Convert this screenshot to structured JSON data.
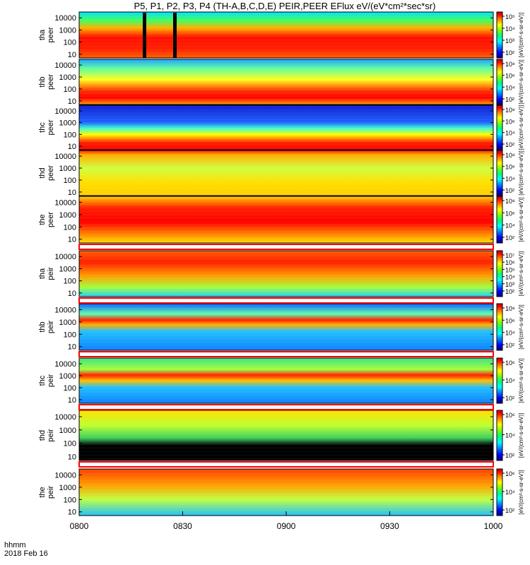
{
  "title": "P5, P1, P2, P3, P4 (TH-A,B,C,D,E) PEIR,PEER EFlux eV/(eV*cm²*sec*sr)",
  "footer": {
    "time_label": "hhmm",
    "date_label": "2018 Feb 16"
  },
  "colorbar_unit": "[eV/(cm²-s-sr-eV)]",
  "chart_data": {
    "type": "heatmap",
    "title": "P5, P1, P2, P3, P4 (TH-A,B,C,D,E) PEIR,PEER EFlux eV/(eV*cm²*sec*sr)",
    "xlabel": "hhmm",
    "date": "2018 Feb 16",
    "x_ticks": [
      "0800",
      "0830",
      "0900",
      "0930",
      "1000"
    ],
    "y_scale": "log",
    "y_ticks": [
      "10",
      "100",
      "1000",
      "10000"
    ],
    "colorbar_scale": "log",
    "colormap": [
      "#000080",
      "#0000ff",
      "#0080ff",
      "#00ffff",
      "#00ff80",
      "#80ff00",
      "#ffff00",
      "#ff8000",
      "#ff0000",
      "#c00000"
    ],
    "panels": [
      {
        "probe": "tha",
        "species": "peer",
        "cbar_ticks": [
          "10⁵",
          "10⁴",
          "10³",
          "10²"
        ],
        "cbar_label": "[eV/(cm²-s-sr-eV)]"
      },
      {
        "probe": "thb",
        "species": "peer",
        "cbar_ticks": [
          "10⁸",
          "10⁶",
          "10⁴",
          "10²"
        ],
        "cbar_label": "[eV/(cm²-s-sr-eV)]"
      },
      {
        "probe": "thc",
        "species": "peer",
        "cbar_ticks": [
          "10⁸",
          "10⁶",
          "10⁴",
          "10²"
        ],
        "cbar_label": "[eV/(cm²-s-sr-eV)]"
      },
      {
        "probe": "thd",
        "species": "peer",
        "cbar_ticks": [
          "10⁸",
          "10⁶",
          "10⁴",
          "10²"
        ],
        "cbar_label": "[eV/(cm²-s-sr-eV)]"
      },
      {
        "probe": "the",
        "species": "peer",
        "cbar_ticks": [
          "10⁸",
          "10⁶",
          "10⁴",
          "10²"
        ],
        "cbar_label": "[eV/(cm²-s-sr-eV)]"
      },
      {
        "probe": "tha",
        "species": "peir",
        "cbar_ticks": [
          "10⁷",
          "10⁶",
          "10⁵",
          "10⁴",
          "10³",
          "10²"
        ],
        "cbar_label": "[eV/(cm²-s-sr-eV)]"
      },
      {
        "probe": "thb",
        "species": "peir",
        "cbar_ticks": [
          "10⁸",
          "10⁶",
          "10⁴",
          "10²"
        ],
        "cbar_label": "[eV/(cm²-s-sr-eV)]"
      },
      {
        "probe": "thc",
        "species": "peir",
        "cbar_ticks": [
          "10⁶",
          "10⁴",
          "10²"
        ],
        "cbar_label": "[eV/(cm²-s-sr-eV)]"
      },
      {
        "probe": "thd",
        "species": "peir",
        "cbar_ticks": [
          "10⁶",
          "10⁴",
          "10²"
        ],
        "cbar_label": "[eV/(cm²-s-sr-eV)]"
      },
      {
        "probe": "the",
        "species": "peir",
        "cbar_ticks": [
          "10⁶",
          "10⁴",
          "10²"
        ],
        "cbar_label": "[eV/(cm²-s-sr-eV)]"
      }
    ]
  }
}
